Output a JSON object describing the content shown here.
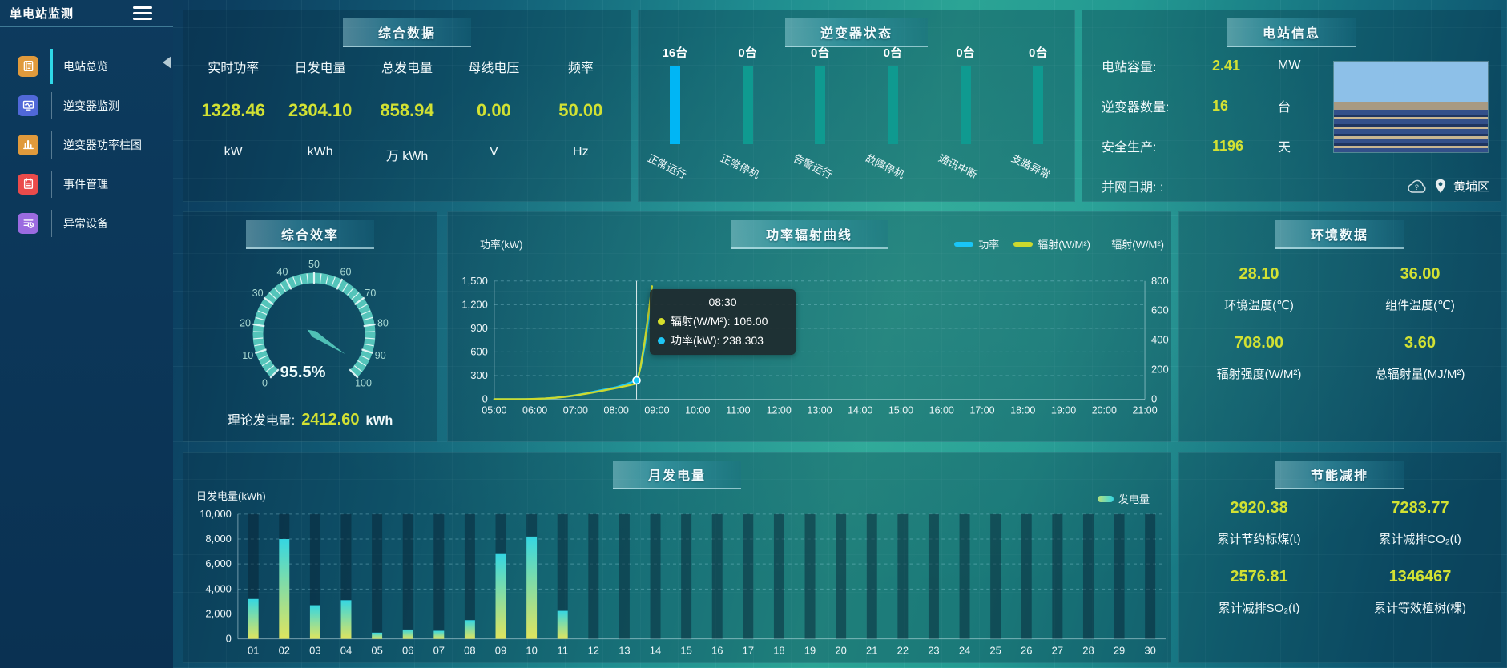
{
  "app": {
    "title": "单电站监测"
  },
  "sidebar": {
    "items": [
      {
        "id": "overview",
        "label": "电站总览",
        "icon": "overview-journal-icon",
        "color": "#e09a3c",
        "active": true
      },
      {
        "id": "inverter-monitor",
        "label": "逆变器监测",
        "icon": "inverter-monitor-icon",
        "color": "#5068d8",
        "active": false
      },
      {
        "id": "inverter-power-bars",
        "label": "逆变器功率柱图",
        "icon": "power-bars-icon",
        "color": "#e09a3c",
        "active": false
      },
      {
        "id": "event-management",
        "label": "事件管理",
        "icon": "event-notebook-icon",
        "color": "#ea4b4b",
        "active": false
      },
      {
        "id": "abnormal-devices",
        "label": "异常设备",
        "icon": "abnormal-device-icon",
        "color": "#9b6be0",
        "active": false
      }
    ]
  },
  "summary": {
    "title": "综合数据",
    "metrics": [
      {
        "id": "realtime-power",
        "label": "实时功率",
        "value": "1328.46",
        "unit": "kW"
      },
      {
        "id": "daily-energy",
        "label": "日发电量",
        "value": "2304.10",
        "unit": "kWh"
      },
      {
        "id": "total-energy",
        "label": "总发电量",
        "value": "858.94",
        "unit": "万 kWh"
      },
      {
        "id": "bus-voltage",
        "label": "母线电压",
        "value": "0.00",
        "unit": "V"
      },
      {
        "id": "frequency",
        "label": "频率",
        "value": "50.00",
        "unit": "Hz"
      }
    ]
  },
  "inverter_status": {
    "title": "逆变器状态"
  },
  "station_info": {
    "title": "电站信息",
    "rows": [
      {
        "id": "station-capacity",
        "label": "电站容量:",
        "value": "2.41",
        "unit": "MW"
      },
      {
        "id": "inverter-count",
        "label": "逆变器数量:",
        "value": "16",
        "unit": "台"
      },
      {
        "id": "safe-production-days",
        "label": "安全生产:",
        "value": "1196",
        "unit": "天"
      },
      {
        "id": "grid-connection-date",
        "label": "并网日期: :",
        "value": "",
        "unit": ""
      }
    ],
    "location": "黄埔区"
  },
  "efficiency": {
    "title": "综合效率",
    "theory": {
      "label": "理论发电量:",
      "value": "2412.60",
      "unit": "kWh"
    }
  },
  "power_curve": {
    "title": "功率辐射曲线",
    "y_left_name": "功率(kW)",
    "y_right_name": "辐射(W/M²)",
    "legend": [
      "功率",
      "辐射(W/M²)"
    ],
    "tooltip": {
      "time": "08:30",
      "rows": [
        {
          "color": "#d7df2b",
          "text": "辐射(W/M²): 106.00"
        },
        {
          "color": "#1ec6f5",
          "text": "功率(kW): 238.303"
        }
      ]
    }
  },
  "environment": {
    "title": "环境数据",
    "metrics": [
      {
        "id": "ambient-temp",
        "value": "28.10",
        "label": "环境温度(℃)"
      },
      {
        "id": "module-temp",
        "value": "36.00",
        "label": "组件温度(℃)"
      },
      {
        "id": "irradiance",
        "value": "708.00",
        "label": "辐射强度(W/M²)"
      },
      {
        "id": "total-irradiation",
        "value": "3.60",
        "label": "总辐射量(MJ/M²)"
      }
    ]
  },
  "monthly": {
    "title": "月发电量",
    "y_name": "日发电量(kWh)",
    "legend": "发电量"
  },
  "energy_saving": {
    "title": "节能减排",
    "metrics": [
      {
        "id": "coal-saved",
        "value": "2920.38",
        "label": "累计节约标煤(t)"
      },
      {
        "id": "co2-reduced",
        "value": "7283.77",
        "label": "累计减排CO₂(t)"
      },
      {
        "id": "so2-reduced",
        "value": "2576.81",
        "label": "累计减排SO₂(t)"
      },
      {
        "id": "trees-equivalent",
        "value": "1346467",
        "label": "累计等效植树(棵)"
      }
    ]
  },
  "chart_data": [
    {
      "id": "inverter_status",
      "type": "bar",
      "title": "逆变器状态",
      "categories": [
        "正常运行",
        "正常停机",
        "告警运行",
        "故障停机",
        "通讯中断",
        "支路异常"
      ],
      "values": [
        16,
        0,
        0,
        0,
        0,
        0
      ],
      "count_labels": [
        "16台",
        "0台",
        "0台",
        "0台",
        "0台",
        "0台"
      ],
      "bar_colors": [
        "#00b6f5",
        "#0f9a90",
        "#0f9a90",
        "#0f9a90",
        "#0f9a90",
        "#0f9a90"
      ],
      "ids": [
        "normal-running",
        "normal-stop",
        "alarm-running",
        "fault-stop",
        "comm-interrupted",
        "branch-abnormal"
      ]
    },
    {
      "id": "efficiency_gauge",
      "type": "gauge",
      "title": "综合效率",
      "min": 0,
      "max": 100,
      "value": 95.5,
      "value_label": "95.5%",
      "major_ticks": [
        0,
        10,
        20,
        30,
        40,
        50,
        60,
        70,
        80,
        90,
        100
      ],
      "color": "#54c4ba"
    },
    {
      "id": "power_radiation",
      "type": "line",
      "title": "功率辐射曲线",
      "x_range": [
        5,
        21
      ],
      "x_ticks": [
        "05:00",
        "06:00",
        "07:00",
        "08:00",
        "09:00",
        "10:00",
        "11:00",
        "12:00",
        "13:00",
        "14:00",
        "15:00",
        "16:00",
        "17:00",
        "18:00",
        "19:00",
        "20:00",
        "21:00"
      ],
      "y_left": {
        "name": "功率(kW)",
        "min": 0,
        "max": 1500,
        "tick_labels": [
          "0",
          "300",
          "600",
          "900",
          "1,200",
          "1,500"
        ]
      },
      "y_right": {
        "name": "辐射(W/M²)",
        "min": 0,
        "max": 800,
        "tick_labels": [
          "0",
          "200",
          "400",
          "600",
          "800"
        ]
      },
      "series": [
        {
          "name": "功率",
          "color": "#19c5f7",
          "axis": "left",
          "points": [
            [
              5,
              0
            ],
            [
              5.25,
              0
            ],
            [
              5.5,
              0
            ],
            [
              5.75,
              1
            ],
            [
              6,
              3
            ],
            [
              6.25,
              8
            ],
            [
              6.5,
              18
            ],
            [
              6.75,
              33
            ],
            [
              7,
              52
            ],
            [
              7.25,
              74
            ],
            [
              7.5,
              100
            ],
            [
              7.75,
              126
            ],
            [
              8,
              152
            ],
            [
              8.25,
              192
            ],
            [
              8.5,
              238.3
            ],
            [
              8.6,
              400
            ],
            [
              8.7,
              680
            ],
            [
              8.8,
              1030
            ],
            [
              8.88,
              1380
            ]
          ]
        },
        {
          "name": "辐射(W/M²)",
          "color": "#ccd92e",
          "axis": "right",
          "points": [
            [
              5,
              0
            ],
            [
              5.25,
              0
            ],
            [
              5.5,
              0
            ],
            [
              5.75,
              0
            ],
            [
              6,
              2
            ],
            [
              6.25,
              5
            ],
            [
              6.5,
              10
            ],
            [
              6.75,
              17
            ],
            [
              7,
              26
            ],
            [
              7.25,
              37
            ],
            [
              7.5,
              49
            ],
            [
              7.75,
              62
            ],
            [
              8,
              76
            ],
            [
              8.25,
              90
            ],
            [
              8.5,
              106
            ],
            [
              8.6,
              220
            ],
            [
              8.7,
              390
            ],
            [
              8.8,
              590
            ],
            [
              8.88,
              765
            ]
          ]
        }
      ],
      "pointer_x": 8.5,
      "highlight": {
        "series": "功率",
        "x": 8.5,
        "y": 238.303
      }
    },
    {
      "id": "monthly_generation",
      "type": "bar",
      "title": "月发电量",
      "y_name": "日发电量(kWh)",
      "ylim": [
        0,
        10000
      ],
      "y_tick_labels": [
        "0",
        "2,000",
        "4,000",
        "6,000",
        "8,000",
        "10,000"
      ],
      "categories": [
        "01",
        "02",
        "03",
        "04",
        "05",
        "06",
        "07",
        "08",
        "09",
        "10",
        "11",
        "12",
        "13",
        "14",
        "15",
        "16",
        "17",
        "18",
        "19",
        "20",
        "21",
        "22",
        "23",
        "24",
        "25",
        "26",
        "27",
        "28",
        "29",
        "30"
      ],
      "values": [
        3200,
        8000,
        2700,
        3100,
        500,
        750,
        650,
        1500,
        6800,
        8200,
        2250,
        0,
        0,
        0,
        0,
        0,
        0,
        0,
        0,
        0,
        0,
        0,
        0,
        0,
        0,
        0,
        0,
        0,
        0,
        0
      ],
      "legend": "发电量",
      "bar_gradient": [
        "#dfe45e",
        "#35d6e2"
      ]
    }
  ]
}
